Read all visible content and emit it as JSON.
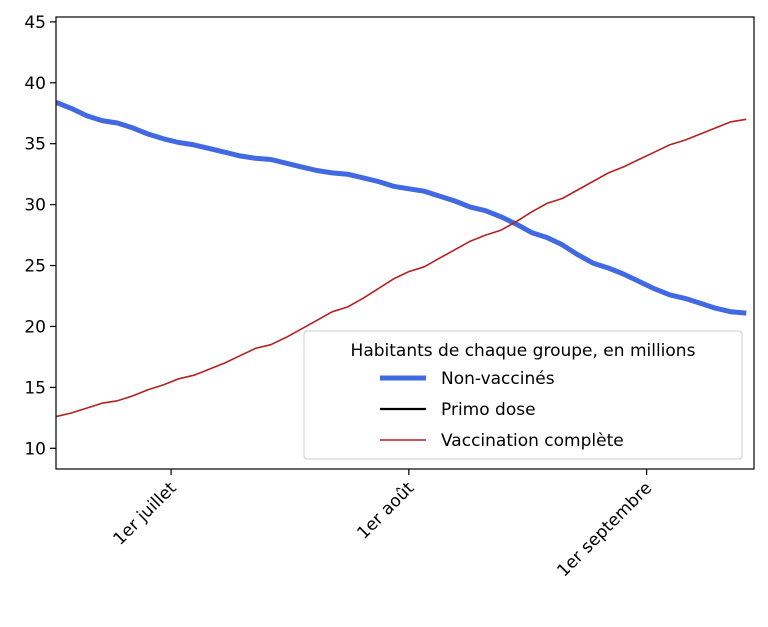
{
  "chart_data": {
    "type": "line",
    "title": "",
    "xlabel": "",
    "ylabel": "",
    "x_unit": "day",
    "xlim": [
      "2021-06-16",
      "2021-09-15"
    ],
    "ylim": [
      8.3,
      45.4
    ],
    "y_ticks": [
      10,
      15,
      20,
      25,
      30,
      35,
      40,
      45
    ],
    "x_ticks": [
      {
        "date": "2021-07-01",
        "label": "1er juillet"
      },
      {
        "date": "2021-08-01",
        "label": "1er août"
      },
      {
        "date": "2021-09-01",
        "label": "1er septembre"
      }
    ],
    "grid": false,
    "legend": {
      "title": "Habitants de chaque groupe, en millions",
      "placement": "lower-right"
    },
    "series": [
      {
        "name": "Non-vaccinés",
        "color": "#4169e1",
        "linewidth": "thick",
        "points": [
          [
            "2021-06-16",
            38.4
          ],
          [
            "2021-06-18",
            37.9
          ],
          [
            "2021-06-20",
            37.3
          ],
          [
            "2021-06-22",
            36.9
          ],
          [
            "2021-06-24",
            36.7
          ],
          [
            "2021-06-26",
            36.3
          ],
          [
            "2021-06-28",
            35.8
          ],
          [
            "2021-06-30",
            35.4
          ],
          [
            "2021-07-02",
            35.1
          ],
          [
            "2021-07-04",
            34.9
          ],
          [
            "2021-07-06",
            34.6
          ],
          [
            "2021-07-08",
            34.3
          ],
          [
            "2021-07-10",
            34.0
          ],
          [
            "2021-07-12",
            33.8
          ],
          [
            "2021-07-14",
            33.7
          ],
          [
            "2021-07-16",
            33.4
          ],
          [
            "2021-07-18",
            33.1
          ],
          [
            "2021-07-20",
            32.8
          ],
          [
            "2021-07-22",
            32.6
          ],
          [
            "2021-07-24",
            32.5
          ],
          [
            "2021-07-26",
            32.2
          ],
          [
            "2021-07-28",
            31.9
          ],
          [
            "2021-07-30",
            31.5
          ],
          [
            "2021-08-01",
            31.3
          ],
          [
            "2021-08-03",
            31.1
          ],
          [
            "2021-08-05",
            30.7
          ],
          [
            "2021-08-07",
            30.3
          ],
          [
            "2021-08-09",
            29.8
          ],
          [
            "2021-08-11",
            29.5
          ],
          [
            "2021-08-13",
            29.0
          ],
          [
            "2021-08-15",
            28.4
          ],
          [
            "2021-08-17",
            27.7
          ],
          [
            "2021-08-19",
            27.3
          ],
          [
            "2021-08-21",
            26.7
          ],
          [
            "2021-08-23",
            25.9
          ],
          [
            "2021-08-25",
            25.2
          ],
          [
            "2021-08-27",
            24.8
          ],
          [
            "2021-08-29",
            24.3
          ],
          [
            "2021-08-31",
            23.7
          ],
          [
            "2021-09-02",
            23.1
          ],
          [
            "2021-09-04",
            22.6
          ],
          [
            "2021-09-06",
            22.3
          ],
          [
            "2021-09-08",
            21.9
          ],
          [
            "2021-09-10",
            21.5
          ],
          [
            "2021-09-12",
            21.2
          ],
          [
            "2021-09-14",
            21.1
          ]
        ]
      },
      {
        "name": "Primo dose",
        "color": "#000000",
        "linewidth": "medium",
        "points": []
      },
      {
        "name": "Vaccination complète",
        "color": "#b22222",
        "linewidth": "thin",
        "points": [
          [
            "2021-06-16",
            12.6
          ],
          [
            "2021-06-18",
            12.9
          ],
          [
            "2021-06-20",
            13.3
          ],
          [
            "2021-06-22",
            13.7
          ],
          [
            "2021-06-24",
            13.9
          ],
          [
            "2021-06-26",
            14.3
          ],
          [
            "2021-06-28",
            14.8
          ],
          [
            "2021-06-30",
            15.2
          ],
          [
            "2021-07-02",
            15.7
          ],
          [
            "2021-07-04",
            16.0
          ],
          [
            "2021-07-06",
            16.5
          ],
          [
            "2021-07-08",
            17.0
          ],
          [
            "2021-07-10",
            17.6
          ],
          [
            "2021-07-12",
            18.2
          ],
          [
            "2021-07-14",
            18.5
          ],
          [
            "2021-07-16",
            19.1
          ],
          [
            "2021-07-18",
            19.8
          ],
          [
            "2021-07-20",
            20.5
          ],
          [
            "2021-07-22",
            21.2
          ],
          [
            "2021-07-24",
            21.6
          ],
          [
            "2021-07-26",
            22.3
          ],
          [
            "2021-07-28",
            23.1
          ],
          [
            "2021-07-30",
            23.9
          ],
          [
            "2021-08-01",
            24.5
          ],
          [
            "2021-08-03",
            24.9
          ],
          [
            "2021-08-05",
            25.6
          ],
          [
            "2021-08-07",
            26.3
          ],
          [
            "2021-08-09",
            27.0
          ],
          [
            "2021-08-11",
            27.5
          ],
          [
            "2021-08-13",
            27.9
          ],
          [
            "2021-08-15",
            28.6
          ],
          [
            "2021-08-17",
            29.4
          ],
          [
            "2021-08-19",
            30.1
          ],
          [
            "2021-08-21",
            30.5
          ],
          [
            "2021-08-23",
            31.2
          ],
          [
            "2021-08-25",
            31.9
          ],
          [
            "2021-08-27",
            32.6
          ],
          [
            "2021-08-29",
            33.1
          ],
          [
            "2021-08-31",
            33.7
          ],
          [
            "2021-09-02",
            34.3
          ],
          [
            "2021-09-04",
            34.9
          ],
          [
            "2021-09-06",
            35.3
          ],
          [
            "2021-09-08",
            35.8
          ],
          [
            "2021-09-10",
            36.3
          ],
          [
            "2021-09-12",
            36.8
          ],
          [
            "2021-09-14",
            37.0
          ]
        ]
      }
    ]
  }
}
